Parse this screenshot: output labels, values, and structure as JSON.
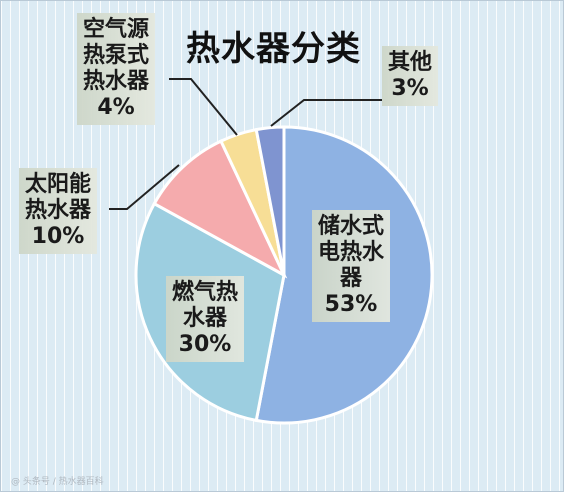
{
  "chart_data": {
    "type": "pie",
    "title": "热水器分类",
    "slices": [
      {
        "lines": [
          "储水式",
          "电热水",
          "器"
        ],
        "pct_label": "53%",
        "value": 53,
        "color": "#8eb2e3"
      },
      {
        "lines": [
          "燃气热",
          "水器"
        ],
        "pct_label": "30%",
        "value": 30,
        "color": "#9ccee0"
      },
      {
        "lines": [
          "太阳能",
          "热水器"
        ],
        "pct_label": "10%",
        "value": 10,
        "color": "#f5abad"
      },
      {
        "lines": [
          "空气源",
          "热泵式",
          "热水器"
        ],
        "pct_label": "4%",
        "value": 4,
        "color": "#f7de96"
      },
      {
        "lines": [
          "其他"
        ],
        "pct_label": "3%",
        "value": 3,
        "color": "#7f94d0"
      }
    ],
    "start_angle_deg": 0,
    "direction": "clockwise"
  }
}
